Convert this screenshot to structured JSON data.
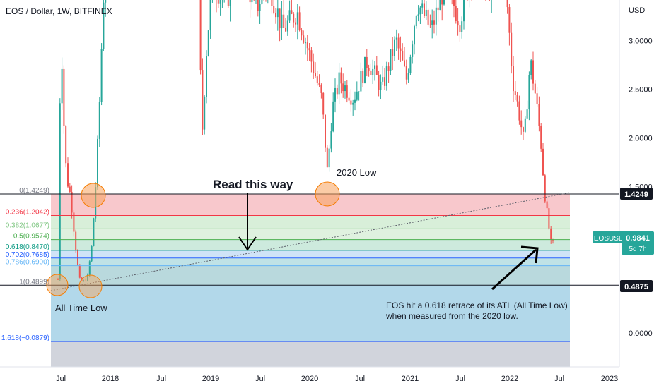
{
  "header": {
    "title": "EOS / Dollar, 1W, BITFINEX"
  },
  "currency": "USD",
  "chart_data": {
    "type": "candlestick",
    "symbol": "EOSUSD",
    "interval": "1W",
    "exchange": "BITFINEX",
    "y_axis_ticks": [
      "3.0000",
      "2.5000",
      "2.0000",
      "1.5000",
      "0.0000"
    ],
    "x_axis_ticks": [
      "Jul",
      "2018",
      "Jul",
      "2019",
      "Jul",
      "2020",
      "Jul",
      "2021",
      "Jul",
      "2022",
      "Jul",
      "2023"
    ],
    "fib_levels": [
      {
        "label": "0(1.4249)",
        "ratio": 0,
        "value": 1.4249,
        "color": "#787b86"
      },
      {
        "label": "0.236(1.2042)",
        "ratio": 0.236,
        "value": 1.2042,
        "color": "#f23645"
      },
      {
        "label": "0.382(1.0677)",
        "ratio": 0.382,
        "value": 1.0677,
        "color": "#81c784"
      },
      {
        "label": "0.5(0.9574)",
        "ratio": 0.5,
        "value": 0.9574,
        "color": "#4caf50"
      },
      {
        "label": "0.618(0.8470)",
        "ratio": 0.618,
        "value": 0.847,
        "color": "#089981"
      },
      {
        "label": "0.702(0.7685)",
        "ratio": 0.702,
        "value": 0.7685,
        "color": "#2962ff"
      },
      {
        "label": "0.786(0.6900)",
        "ratio": 0.786,
        "value": 0.69,
        "color": "#64b5f6"
      },
      {
        "label": "1(0.4899)",
        "ratio": 1,
        "value": 0.4899,
        "color": "#787b86"
      },
      {
        "label": "1.618(−0.0879)",
        "ratio": 1.618,
        "value": -0.0879,
        "color": "#2962ff"
      }
    ],
    "price_labels": [
      {
        "text": "1.4249",
        "value": 1.4249
      },
      {
        "text": "0.4875",
        "value": 0.4875
      }
    ],
    "current": {
      "ticker": "EOSUSD",
      "price": "0.9841",
      "countdown": "5d 7h",
      "value": 0.9841
    }
  },
  "annotations": {
    "read_this_way": "Read this way",
    "low_2020": "2020 Low",
    "all_time_low": "All Time Low",
    "note_line1": "EOS hit a 0.618 retrace of its ATL (All Time Low)",
    "note_line2": "when measured from the 2020 low."
  }
}
